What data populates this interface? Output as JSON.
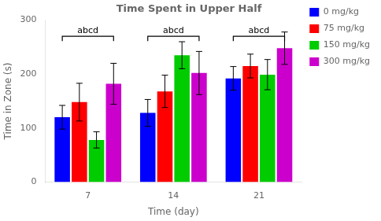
{
  "chart_data": {
    "type": "bar",
    "title": "Time Spent in Upper Half",
    "x_label": "Time (day)",
    "y_label": "Time in Zone (s)",
    "categories": [
      "7",
      "14",
      "21"
    ],
    "series": [
      {
        "name": "0 mg/kg",
        "color": "#0000FF",
        "values": [
          120,
          128,
          192
        ],
        "errors": [
          22,
          25,
          22
        ]
      },
      {
        "name": "75 mg/kg",
        "color": "#FF0000",
        "values": [
          148,
          168,
          215
        ],
        "errors": [
          35,
          30,
          22
        ]
      },
      {
        "name": "150 mg/kg",
        "color": "#00CC00",
        "values": [
          78,
          235,
          199
        ],
        "errors": [
          15,
          25,
          28
        ]
      },
      {
        "name": "300 mg/kg",
        "color": "#CC00CC",
        "values": [
          182,
          202,
          248
        ],
        "errors": [
          38,
          40,
          30
        ]
      }
    ],
    "annotations": [
      {
        "text": "abcd",
        "x": "7",
        "y": 270
      },
      {
        "text": "abcd",
        "x": "14",
        "y": 270
      },
      {
        "text": "abcd",
        "x": "21",
        "y": 270
      }
    ],
    "ylim": [
      0,
      300
    ],
    "yticks": [
      0,
      100,
      200,
      300
    ],
    "grid": false,
    "legend": "right"
  }
}
